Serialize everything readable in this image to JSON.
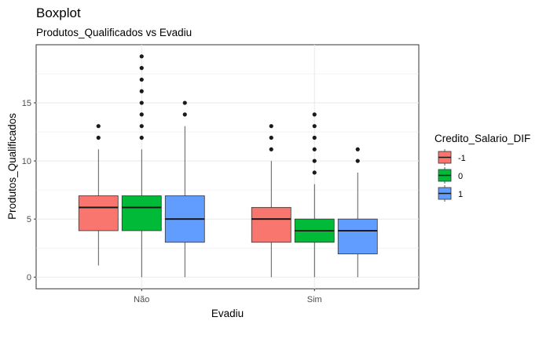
{
  "chart_data": {
    "type": "boxplot",
    "title": "Boxplot",
    "subtitle": "Produtos_Qualificados vs Evadiu",
    "xlabel": "Evadiu",
    "ylabel": "Produtos_Qualificados",
    "categories": [
      "Não",
      "Sim"
    ],
    "ylim": [
      -1,
      20
    ],
    "yticks": [
      0,
      5,
      10,
      15
    ],
    "grid": true,
    "legend": {
      "title": "Credito_Salario_DIF",
      "position": "right"
    },
    "series": [
      {
        "name": "-1",
        "color": "#F8766D",
        "boxes": [
          {
            "category": "Não",
            "whisker_low": 1,
            "q1": 4,
            "median": 6,
            "q3": 7,
            "whisker_high": 11,
            "outliers": [
              12,
              13
            ]
          },
          {
            "category": "Sim",
            "whisker_low": 0,
            "q1": 3,
            "median": 5,
            "q3": 6,
            "whisker_high": 10,
            "outliers": [
              11,
              12,
              13
            ]
          }
        ]
      },
      {
        "name": "0",
        "color": "#00BA38",
        "boxes": [
          {
            "category": "Não",
            "whisker_low": 0,
            "q1": 4,
            "median": 6,
            "q3": 7,
            "whisker_high": 11,
            "outliers": [
              12,
              13,
              14,
              15,
              16,
              17,
              18,
              19
            ]
          },
          {
            "category": "Sim",
            "whisker_low": 0,
            "q1": 3,
            "median": 4,
            "q3": 5,
            "whisker_high": 8,
            "outliers": [
              9,
              10,
              11,
              12,
              13,
              14
            ]
          }
        ]
      },
      {
        "name": "1",
        "color": "#619CFF",
        "boxes": [
          {
            "category": "Não",
            "whisker_low": 0,
            "q1": 3,
            "median": 5,
            "q3": 7,
            "whisker_high": 13,
            "outliers": [
              14,
              15
            ]
          },
          {
            "category": "Sim",
            "whisker_low": 0,
            "q1": 2,
            "median": 4,
            "q3": 5,
            "whisker_high": 9,
            "outliers": [
              10,
              11
            ]
          }
        ]
      }
    ]
  }
}
